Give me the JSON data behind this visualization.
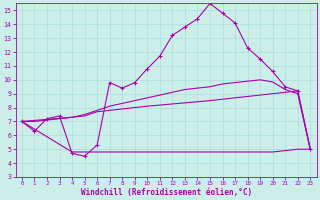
{
  "xlabel": "Windchill (Refroidissement éolien,°C)",
  "xlim": [
    -0.5,
    23.5
  ],
  "ylim": [
    3,
    15.5
  ],
  "xticks": [
    0,
    1,
    2,
    3,
    4,
    5,
    6,
    7,
    8,
    9,
    10,
    11,
    12,
    13,
    14,
    15,
    16,
    17,
    18,
    19,
    20,
    21,
    22,
    23
  ],
  "yticks": [
    3,
    4,
    5,
    6,
    7,
    8,
    9,
    10,
    11,
    12,
    13,
    14,
    15
  ],
  "bg_color": "#cceee8",
  "line_color": "#aa00aa",
  "grid_color": "#aadddd",
  "line1_x": [
    0,
    1,
    2,
    3,
    4,
    5,
    6,
    7,
    8,
    9,
    10,
    11,
    12,
    13,
    14,
    15,
    16,
    17,
    18,
    19,
    20,
    21,
    22,
    23
  ],
  "line1_y": [
    7.0,
    6.3,
    7.2,
    7.4,
    4.7,
    4.5,
    5.3,
    9.8,
    9.4,
    9.8,
    10.8,
    11.7,
    13.2,
    13.8,
    14.4,
    15.5,
    14.8,
    14.1,
    12.3,
    11.5,
    10.6,
    9.5,
    9.2,
    5.0
  ],
  "line2_x": [
    0,
    1,
    2,
    3,
    4,
    5,
    6,
    7,
    8,
    9,
    10,
    11,
    12,
    13,
    14,
    15,
    16,
    17,
    18,
    19,
    20,
    21,
    22,
    23
  ],
  "line2_y": [
    7.0,
    7.0,
    7.1,
    7.2,
    7.3,
    7.5,
    7.8,
    8.1,
    8.3,
    8.5,
    8.7,
    8.9,
    9.1,
    9.3,
    9.4,
    9.5,
    9.7,
    9.8,
    9.9,
    10.0,
    9.85,
    9.3,
    9.0,
    5.0
  ],
  "line3_x": [
    0,
    4,
    5,
    6,
    10,
    15,
    20,
    22,
    23
  ],
  "line3_y": [
    7.0,
    7.3,
    7.4,
    7.7,
    8.1,
    8.5,
    9.0,
    9.2,
    5.0
  ],
  "line4_x": [
    0,
    4,
    10,
    15,
    20,
    22,
    23
  ],
  "line4_y": [
    7.0,
    4.8,
    4.8,
    4.8,
    4.8,
    5.0,
    5.0
  ]
}
